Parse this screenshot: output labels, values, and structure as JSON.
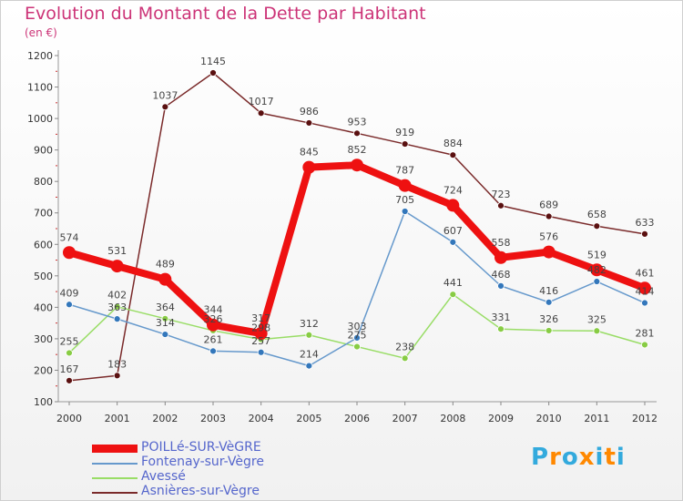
{
  "title": "Evolution du Montant de la Dette par Habitant",
  "unit": "(en €)",
  "logo": {
    "text": "Proxiti",
    "colors": [
      "#33aadd",
      "#ff8800",
      "#33aadd",
      "#ff8800",
      "#33aadd",
      "#ff8800",
      "#33aadd"
    ]
  },
  "chart_data": {
    "type": "line",
    "title": "Evolution du Montant de la Dette par Habitant",
    "ylabel": "(en €)",
    "xlabel": "",
    "ylim": [
      100,
      1200
    ],
    "yticks": [
      100,
      200,
      300,
      400,
      500,
      600,
      700,
      800,
      900,
      1000,
      1100,
      1200
    ],
    "categories": [
      "2000",
      "2001",
      "2002",
      "2003",
      "2004",
      "2005",
      "2006",
      "2007",
      "2008",
      "2009",
      "2010",
      "2011",
      "2012"
    ],
    "grid": false,
    "legend_position": "bottom-left",
    "series": [
      {
        "name": "Asnières-sur-Vègre",
        "color": "#7a2a2a",
        "dot": "#5a1010",
        "width": 1.5,
        "r": 3.5,
        "values": [
          167,
          183,
          1037,
          1145,
          1017,
          986,
          953,
          919,
          884,
          723,
          689,
          658,
          633
        ]
      },
      {
        "name": "Avessé",
        "color": "#99dd66",
        "dot": "#88cc44",
        "width": 1.5,
        "r": 3.5,
        "values": [
          255,
          402,
          364,
          326,
          298,
          312,
          275,
          238,
          441,
          331,
          326,
          325,
          281
        ]
      },
      {
        "name": "Fontenay-sur-Vègre",
        "color": "#6699cc",
        "dot": "#3377bb",
        "width": 1.5,
        "r": 3.5,
        "values": [
          409,
          363,
          314,
          261,
          257,
          214,
          303,
          705,
          607,
          468,
          416,
          482,
          414
        ]
      },
      {
        "name": "POILLé-SUR-VèGRE",
        "color": "#ee1111",
        "dot": "#ee1111",
        "width": 8,
        "r": 7,
        "values": [
          574,
          531,
          489,
          344,
          317,
          845,
          852,
          787,
          724,
          558,
          576,
          519,
          461
        ]
      }
    ],
    "legend_order": [
      3,
      2,
      1,
      0
    ]
  }
}
